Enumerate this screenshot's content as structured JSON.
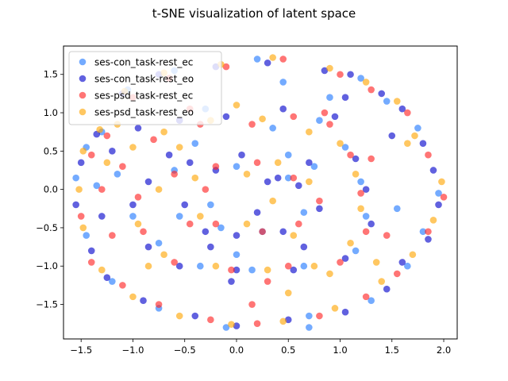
{
  "chart_data": {
    "type": "scatter",
    "title": "t-SNE visualization of latent space",
    "xlabel": "",
    "ylabel": "",
    "xlim": [
      -1.67,
      2.13
    ],
    "ylim": [
      -1.95,
      1.87
    ],
    "xticks": [
      -1.5,
      -1.0,
      -0.5,
      0.0,
      0.5,
      1.0,
      1.5,
      2.0
    ],
    "xtick_labels": [
      "−1.5",
      "−1.0",
      "−0.5",
      "0.0",
      "0.5",
      "1.0",
      "1.5",
      "2.0"
    ],
    "yticks": [
      -1.5,
      -1.0,
      -0.5,
      0.0,
      0.5,
      1.0,
      1.5
    ],
    "ytick_labels": [
      "−1.5",
      "−1.0",
      "−0.5",
      "0.0",
      "0.5",
      "1.0",
      "1.5"
    ],
    "grid": false,
    "legend_position": "top-left",
    "series": [
      {
        "name": "ses-con_task-rest_ec",
        "color": "#1f77ff",
        "points": [
          [
            -1.45,
            0.55
          ],
          [
            -1.3,
            0.75
          ],
          [
            -1.05,
            1.3
          ],
          [
            -0.6,
            1.55
          ],
          [
            0.2,
            1.7
          ],
          [
            0.45,
            1.4
          ],
          [
            1.2,
            1.45
          ],
          [
            1.75,
            0.8
          ],
          [
            1.95,
            -0.05
          ],
          [
            1.8,
            -0.55
          ],
          [
            1.65,
            -1.0
          ],
          [
            1.3,
            -1.45
          ],
          [
            0.7,
            -1.65
          ],
          [
            -0.1,
            -1.8
          ],
          [
            -0.75,
            -1.55
          ],
          [
            -1.2,
            -1.2
          ],
          [
            -1.45,
            -0.6
          ],
          [
            -1.55,
            0.15
          ],
          [
            -1.15,
            0.2
          ],
          [
            -1.0,
            -0.35
          ],
          [
            -0.75,
            -0.7
          ],
          [
            -0.55,
            -0.35
          ],
          [
            -0.6,
            0.25
          ],
          [
            -0.4,
            0.6
          ],
          [
            0.35,
            0.8
          ],
          [
            0.8,
            0.9
          ],
          [
            1.05,
            0.55
          ],
          [
            1.2,
            0.1
          ],
          [
            1.25,
            -0.35
          ],
          [
            1.15,
            -0.8
          ],
          [
            0.65,
            -1.0
          ],
          [
            0.15,
            -1.05
          ],
          [
            -0.35,
            -1.0
          ],
          [
            -0.25,
            -0.2
          ],
          [
            0.0,
            0.3
          ],
          [
            0.5,
            0.15
          ],
          [
            0.65,
            -0.3
          ],
          [
            0.25,
            -0.55
          ],
          [
            -0.15,
            -0.5
          ],
          [
            0.5,
            0.45
          ],
          [
            0.7,
            -1.8
          ],
          [
            -0.3,
            1.05
          ],
          [
            0.9,
            1.2
          ],
          [
            1.45,
            1.15
          ],
          [
            -1.35,
            0.05
          ],
          [
            1.55,
            -0.25
          ],
          [
            0.0,
            -0.85
          ],
          [
            0.75,
            0.3
          ]
        ]
      },
      {
        "name": "ses-con_task-rest_eo",
        "color": "#0000cc",
        "points": [
          [
            -1.5,
            0.35
          ],
          [
            -1.35,
            0.72
          ],
          [
            -1.1,
            1.25
          ],
          [
            -0.75,
            1.5
          ],
          [
            -0.2,
            1.6
          ],
          [
            0.3,
            1.65
          ],
          [
            0.85,
            1.55
          ],
          [
            1.1,
            1.5
          ],
          [
            1.4,
            1.25
          ],
          [
            1.6,
            1.05
          ],
          [
            1.8,
            0.6
          ],
          [
            1.9,
            0.25
          ],
          [
            1.95,
            -0.2
          ],
          [
            1.85,
            -0.65
          ],
          [
            1.6,
            -0.95
          ],
          [
            1.45,
            -1.3
          ],
          [
            1.05,
            -1.6
          ],
          [
            0.5,
            -1.7
          ],
          [
            0.0,
            -1.78
          ],
          [
            -0.4,
            -1.65
          ],
          [
            -0.9,
            -1.45
          ],
          [
            -1.25,
            -1.15
          ],
          [
            -1.4,
            -0.8
          ],
          [
            -1.55,
            -0.2
          ],
          [
            -1.2,
            0.5
          ],
          [
            -0.95,
            0.8
          ],
          [
            -0.55,
            0.9
          ],
          [
            -0.1,
            0.95
          ],
          [
            0.45,
            1.05
          ],
          [
            0.95,
            0.95
          ],
          [
            1.15,
            0.4
          ],
          [
            1.25,
            0.0
          ],
          [
            1.3,
            -0.45
          ],
          [
            1.05,
            -0.9
          ],
          [
            0.55,
            -1.05
          ],
          [
            0.0,
            -1.05
          ],
          [
            -0.55,
            -1.0
          ],
          [
            -0.85,
            -0.75
          ],
          [
            -1.0,
            -0.2
          ],
          [
            -0.85,
            0.1
          ],
          [
            -0.45,
            0.35
          ],
          [
            0.05,
            0.45
          ],
          [
            0.3,
            0.1
          ],
          [
            0.6,
            0.05
          ],
          [
            0.8,
            -0.25
          ],
          [
            0.45,
            -0.55
          ],
          [
            0.0,
            -0.6
          ],
          [
            -0.3,
            -0.55
          ],
          [
            -0.5,
            -0.2
          ],
          [
            -0.2,
            0.25
          ],
          [
            0.2,
            -0.3
          ],
          [
            0.7,
            0.35
          ],
          [
            0.4,
            0.15
          ],
          [
            -0.65,
            0.45
          ],
          [
            1.05,
            1.2
          ],
          [
            -0.05,
            -1.2
          ],
          [
            0.65,
            -0.75
          ],
          [
            -0.25,
            -0.75
          ],
          [
            1.5,
            0.7
          ],
          [
            -1.3,
            -0.35
          ]
        ]
      },
      {
        "name": "ses-psd_task-rest_ec",
        "color": "#ff2020",
        "points": [
          [
            -1.4,
            0.45
          ],
          [
            -1.25,
            0.7
          ],
          [
            -1.0,
            1.2
          ],
          [
            -0.65,
            1.45
          ],
          [
            -0.1,
            1.6
          ],
          [
            0.45,
            1.7
          ],
          [
            1.0,
            1.5
          ],
          [
            1.3,
            1.3
          ],
          [
            1.65,
            1.0
          ],
          [
            1.85,
            0.45
          ],
          [
            2.0,
            -0.1
          ],
          [
            1.85,
            -0.55
          ],
          [
            1.55,
            -1.1
          ],
          [
            1.25,
            -1.4
          ],
          [
            0.8,
            -1.65
          ],
          [
            0.2,
            -1.75
          ],
          [
            -0.25,
            -1.7
          ],
          [
            -0.75,
            -1.5
          ],
          [
            -1.1,
            -1.25
          ],
          [
            -1.4,
            -0.95
          ],
          [
            -1.5,
            -0.35
          ],
          [
            -1.3,
            0.0
          ],
          [
            -1.1,
            0.3
          ],
          [
            -0.8,
            0.65
          ],
          [
            -0.35,
            0.85
          ],
          [
            0.15,
            0.85
          ],
          [
            0.55,
            0.95
          ],
          [
            0.9,
            0.85
          ],
          [
            1.1,
            0.45
          ],
          [
            1.2,
            -0.05
          ],
          [
            1.25,
            -0.55
          ],
          [
            1.0,
            -0.95
          ],
          [
            0.5,
            -1.0
          ],
          [
            -0.05,
            -1.05
          ],
          [
            -0.6,
            -0.95
          ],
          [
            -0.9,
            -0.55
          ],
          [
            -0.95,
            -0.1
          ],
          [
            -0.6,
            0.2
          ],
          [
            -0.2,
            0.3
          ],
          [
            0.2,
            0.35
          ],
          [
            0.55,
            0.15
          ],
          [
            0.8,
            -0.15
          ],
          [
            0.6,
            -0.45
          ],
          [
            0.25,
            -0.55
          ],
          [
            -0.2,
            -0.45
          ],
          [
            -0.45,
            -0.45
          ],
          [
            0.85,
            1.0
          ],
          [
            0.3,
            -1.2
          ],
          [
            -0.45,
            1.05
          ],
          [
            1.45,
            -0.6
          ],
          [
            -1.2,
            -0.6
          ],
          [
            0.15,
            -1.5
          ],
          [
            1.3,
            0.4
          ],
          [
            -0.3,
            0.0
          ]
        ]
      },
      {
        "name": "ses-psd_task-rest_eo",
        "color": "#ffa500",
        "points": [
          [
            -1.48,
            0.5
          ],
          [
            -1.32,
            0.78
          ],
          [
            -1.08,
            1.28
          ],
          [
            -0.7,
            1.52
          ],
          [
            -0.15,
            1.63
          ],
          [
            0.35,
            1.72
          ],
          [
            0.9,
            1.58
          ],
          [
            1.25,
            1.4
          ],
          [
            1.55,
            1.15
          ],
          [
            1.72,
            0.7
          ],
          [
            1.98,
            0.1
          ],
          [
            1.9,
            -0.4
          ],
          [
            1.7,
            -0.85
          ],
          [
            1.4,
            -1.2
          ],
          [
            0.95,
            -1.55
          ],
          [
            0.45,
            -1.72
          ],
          [
            -0.05,
            -1.76
          ],
          [
            -0.55,
            -1.65
          ],
          [
            -1.0,
            -1.4
          ],
          [
            -1.3,
            -1.05
          ],
          [
            -1.48,
            -0.5
          ],
          [
            -1.52,
            0.0
          ],
          [
            -1.25,
            0.35
          ],
          [
            -1.0,
            0.55
          ],
          [
            -0.7,
            0.75
          ],
          [
            -0.25,
            0.9
          ],
          [
            0.25,
            0.92
          ],
          [
            0.7,
            0.75
          ],
          [
            1.0,
            0.6
          ],
          [
            1.15,
            0.2
          ],
          [
            1.2,
            -0.25
          ],
          [
            1.1,
            -0.7
          ],
          [
            0.75,
            -1.0
          ],
          [
            0.3,
            -1.05
          ],
          [
            -0.2,
            -1.0
          ],
          [
            -0.7,
            -0.85
          ],
          [
            -0.95,
            -0.45
          ],
          [
            -0.75,
            0.0
          ],
          [
            -0.4,
            0.15
          ],
          [
            0.1,
            0.2
          ],
          [
            0.4,
            0.35
          ],
          [
            0.7,
            0.1
          ],
          [
            0.55,
            -0.6
          ],
          [
            0.1,
            -0.45
          ],
          [
            -0.35,
            -0.35
          ],
          [
            0.35,
            -0.15
          ],
          [
            -0.55,
            0.55
          ],
          [
            1.65,
            0.6
          ],
          [
            0.9,
            -1.1
          ],
          [
            -0.85,
            -1.0
          ],
          [
            0.0,
            1.1
          ],
          [
            1.35,
            -0.95
          ],
          [
            -1.15,
            0.85
          ],
          [
            0.5,
            -1.35
          ]
        ]
      }
    ]
  }
}
